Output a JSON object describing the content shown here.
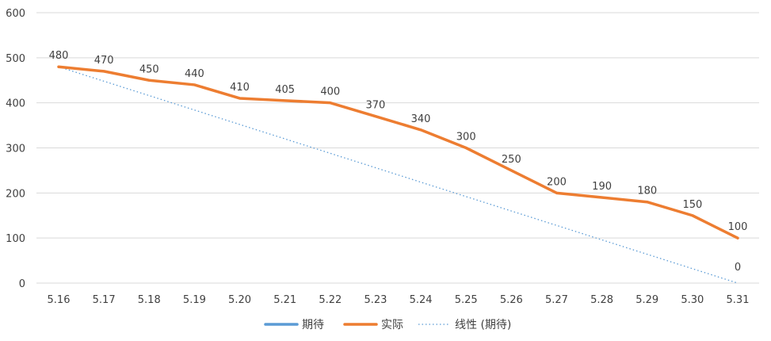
{
  "chart_data": {
    "type": "line",
    "categories": [
      "5.16",
      "5.17",
      "5.18",
      "5.19",
      "5.20",
      "5.21",
      "5.22",
      "5.23",
      "5.24",
      "5.25",
      "5.26",
      "5.27",
      "5.28",
      "5.29",
      "5.30",
      "5.31"
    ],
    "ylim": [
      0,
      600
    ],
    "yticks": [
      0,
      100,
      200,
      300,
      400,
      500,
      600
    ],
    "grid": true,
    "legend_position": "bottom",
    "series": [
      {
        "name": "期待",
        "color": "#5B9BD5",
        "line": "solid",
        "values": [
          480,
          null,
          null,
          null,
          null,
          null,
          null,
          null,
          null,
          null,
          null,
          null,
          null,
          null,
          null,
          0
        ]
      },
      {
        "name": "实际",
        "color": "#ED7D31",
        "line": "solid",
        "values": [
          480,
          470,
          450,
          440,
          410,
          405,
          400,
          370,
          340,
          300,
          250,
          200,
          190,
          180,
          150,
          100
        ]
      },
      {
        "name": "线性 (期待)",
        "color": "#5B9BD5",
        "line": "dotted",
        "values": [
          480,
          448,
          416,
          384,
          352,
          320,
          288,
          256,
          224,
          192,
          160,
          128,
          96,
          64,
          32,
          0
        ]
      }
    ],
    "data_labels": {
      "实际": [
        "480",
        "470",
        "450",
        "440",
        "410",
        "405",
        "400",
        "370",
        "340",
        "300",
        "250",
        "200",
        "190",
        "180",
        "150",
        "100"
      ],
      "期待": {
        "15": "0"
      }
    }
  }
}
